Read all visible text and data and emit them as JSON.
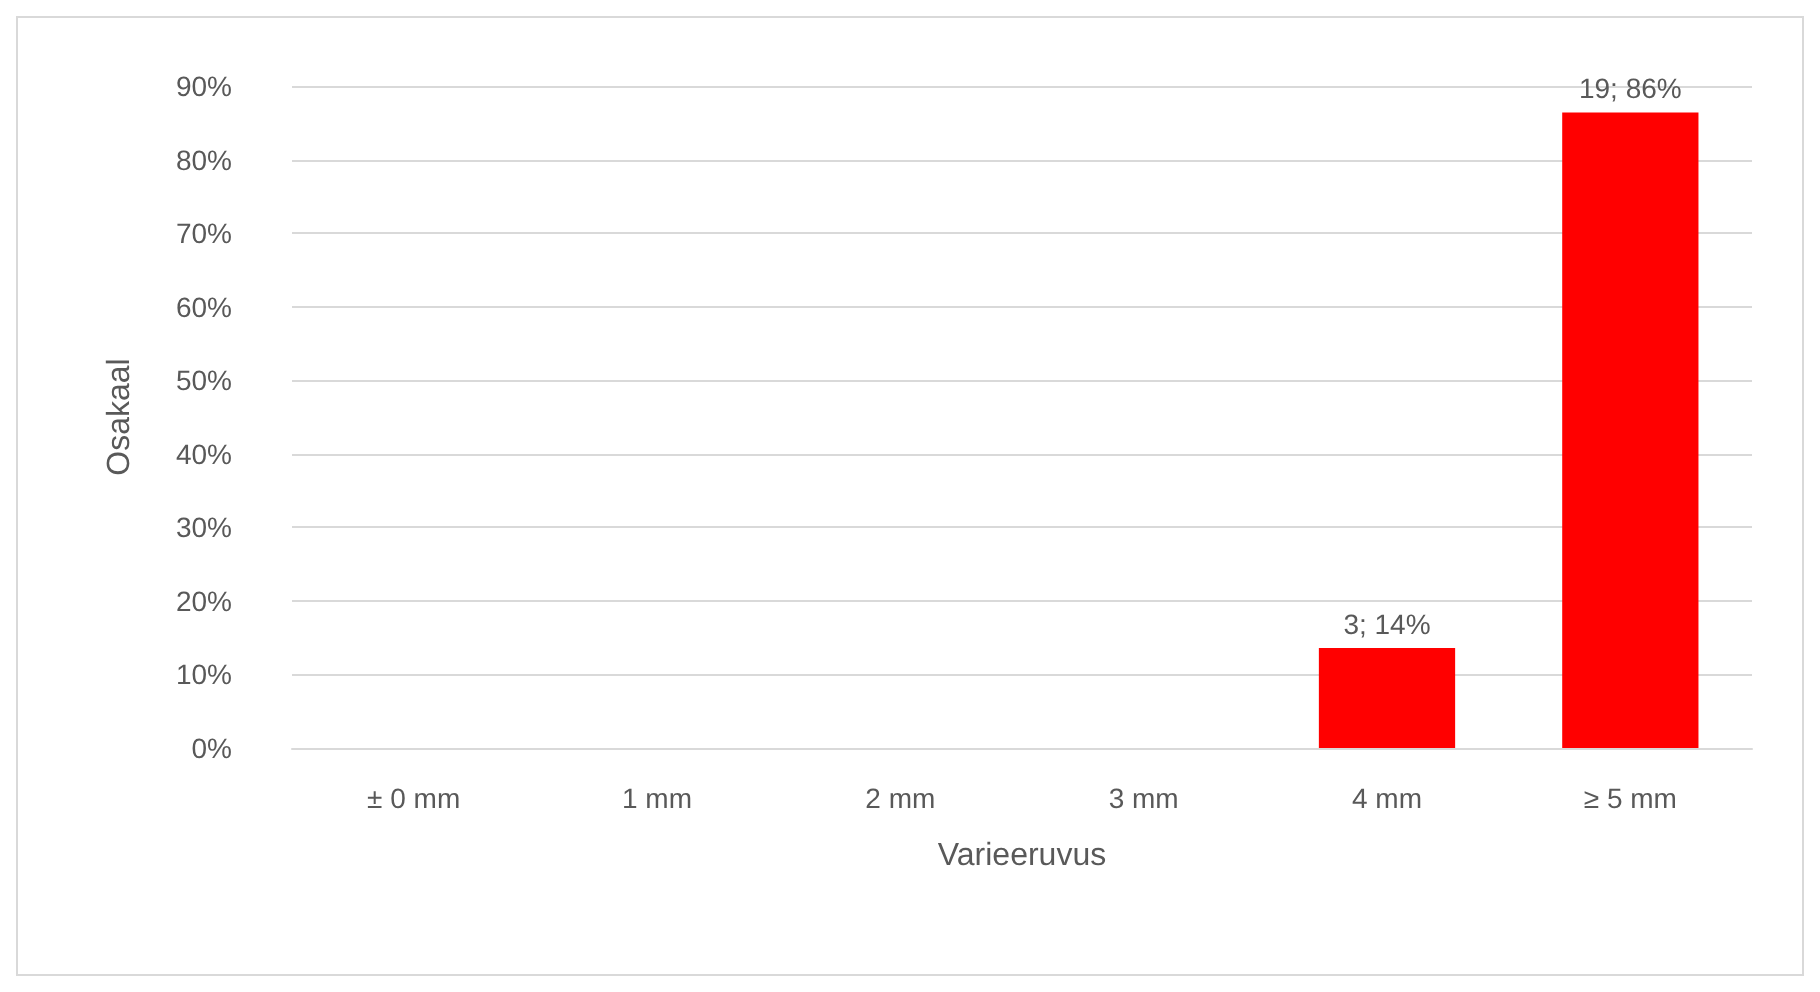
{
  "chart_data": {
    "type": "bar",
    "xlabel": "Varieeruvus",
    "ylabel": "Osakaal",
    "categories": [
      "± 0 mm",
      "1 mm",
      "2 mm",
      "3 mm",
      "4 mm",
      "≥ 5 mm"
    ],
    "values": [
      0,
      0,
      0,
      0,
      13.6,
      86.4
    ],
    "value_labels": [
      null,
      null,
      null,
      null,
      "3; 14%",
      "19; 86%"
    ],
    "color": "#ff0000",
    "ylim": [
      0,
      90
    ],
    "yticks": [
      {
        "value": 0,
        "label": "0%"
      },
      {
        "value": 10,
        "label": "10%"
      },
      {
        "value": 20,
        "label": "20%"
      },
      {
        "value": 30,
        "label": "30%"
      },
      {
        "value": 40,
        "label": "40%"
      },
      {
        "value": 50,
        "label": "50%"
      },
      {
        "value": 60,
        "label": "60%"
      },
      {
        "value": 70,
        "label": "70%"
      },
      {
        "value": 80,
        "label": "80%"
      },
      {
        "value": 90,
        "label": "90%"
      }
    ],
    "grid": "y"
  }
}
